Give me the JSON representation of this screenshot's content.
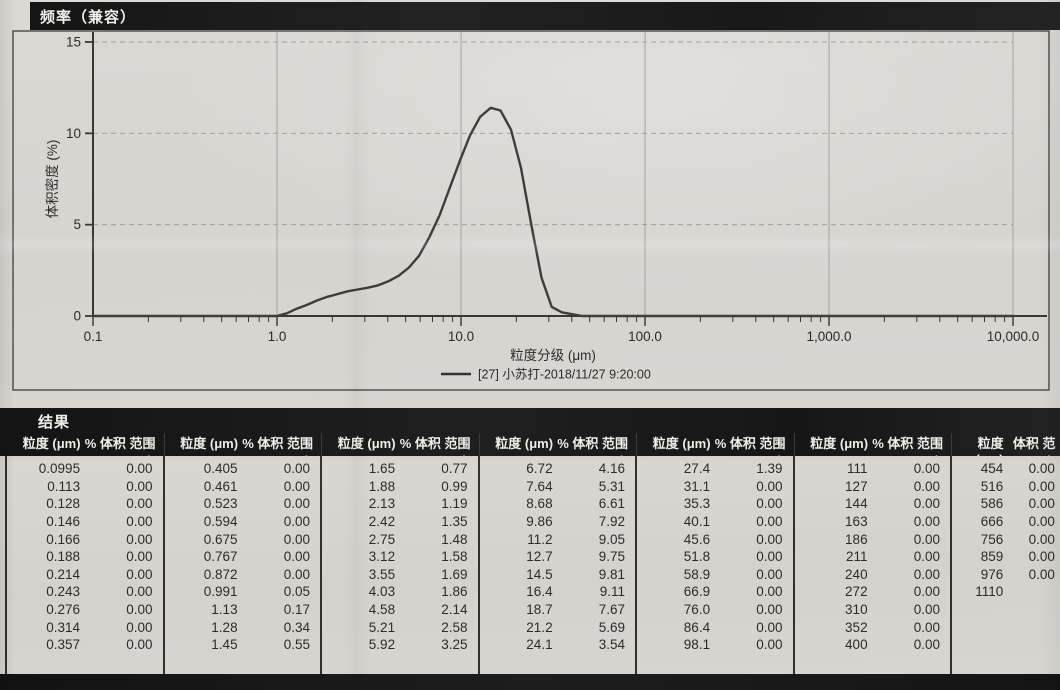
{
  "window": {
    "paper_color": "#d7d4d0",
    "band_color": "#1b1b1b",
    "text_color": "#2d2b28"
  },
  "header": {
    "title": "频率（兼容）"
  },
  "chart_data": {
    "type": "line",
    "title": "频率（兼容）",
    "xlabel": "粒度分级 (μm)",
    "ylabel": "体积密度 (%)",
    "x_scale": "log",
    "xlim": [
      0.1,
      10000
    ],
    "ylim": [
      0,
      15
    ],
    "grid": true,
    "legend_position": "bottom-center",
    "legend_label": "[27] 小苏打-2018/11/27 9:20:00",
    "curve_color": "#3f3d3a",
    "grid_color": "#a3a19d",
    "axis_color": "#39372f",
    "x_ticks": [
      {
        "v": 0.1,
        "label": "0.1"
      },
      {
        "v": 1,
        "label": "1.0"
      },
      {
        "v": 10,
        "label": "10.0"
      },
      {
        "v": 100,
        "label": "100.0"
      },
      {
        "v": 1000,
        "label": "1,000.0"
      },
      {
        "v": 10000,
        "label": "10,000.0"
      }
    ],
    "y_ticks": [
      {
        "v": 0,
        "label": "0"
      },
      {
        "v": 5,
        "label": "5"
      },
      {
        "v": 10,
        "label": "10"
      },
      {
        "v": 15,
        "label": "15"
      }
    ],
    "series": [
      {
        "name": "[27] 小苏打-2018/11/27 9:20:00",
        "x": [
          0.1,
          1.0,
          1.13,
          1.28,
          1.45,
          1.65,
          1.88,
          2.13,
          2.42,
          2.75,
          3.12,
          3.55,
          4.03,
          4.58,
          5.21,
          5.92,
          6.72,
          7.64,
          8.68,
          9.86,
          11.2,
          12.7,
          14.5,
          16.4,
          18.7,
          21.2,
          24.1,
          27.4,
          31.1,
          35.3,
          40.1,
          45.6,
          10000
        ],
        "y": [
          0,
          0,
          0.15,
          0.4,
          0.6,
          0.85,
          1.05,
          1.2,
          1.35,
          1.45,
          1.55,
          1.68,
          1.9,
          2.2,
          2.65,
          3.3,
          4.3,
          5.5,
          7.0,
          8.5,
          9.9,
          10.9,
          11.4,
          11.25,
          10.2,
          8.1,
          5.0,
          2.1,
          0.5,
          0.2,
          0.1,
          0,
          0
        ]
      }
    ]
  },
  "results": {
    "title": "结果",
    "header_size": "粒度 (μm)",
    "header_pct": "% 体积 范围内",
    "header_pct_last": "体积 范围内",
    "groups": [
      [
        [
          "0.0995",
          "0.00"
        ],
        [
          "0.113",
          "0.00"
        ],
        [
          "0.128",
          "0.00"
        ],
        [
          "0.146",
          "0.00"
        ],
        [
          "0.166",
          "0.00"
        ],
        [
          "0.188",
          "0.00"
        ],
        [
          "0.214",
          "0.00"
        ],
        [
          "0.243",
          "0.00"
        ],
        [
          "0.276",
          "0.00"
        ],
        [
          "0.314",
          "0.00"
        ],
        [
          "0.357",
          "0.00"
        ]
      ],
      [
        [
          "0.405",
          "0.00"
        ],
        [
          "0.461",
          "0.00"
        ],
        [
          "0.523",
          "0.00"
        ],
        [
          "0.594",
          "0.00"
        ],
        [
          "0.675",
          "0.00"
        ],
        [
          "0.767",
          "0.00"
        ],
        [
          "0.872",
          "0.00"
        ],
        [
          "0.991",
          "0.05"
        ],
        [
          "1.13",
          "0.17"
        ],
        [
          "1.28",
          "0.34"
        ],
        [
          "1.45",
          "0.55"
        ]
      ],
      [
        [
          "1.65",
          "0.77"
        ],
        [
          "1.88",
          "0.99"
        ],
        [
          "2.13",
          "1.19"
        ],
        [
          "2.42",
          "1.35"
        ],
        [
          "2.75",
          "1.48"
        ],
        [
          "3.12",
          "1.58"
        ],
        [
          "3.55",
          "1.69"
        ],
        [
          "4.03",
          "1.86"
        ],
        [
          "4.58",
          "2.14"
        ],
        [
          "5.21",
          "2.58"
        ],
        [
          "5.92",
          "3.25"
        ]
      ],
      [
        [
          "6.72",
          "4.16"
        ],
        [
          "7.64",
          "5.31"
        ],
        [
          "8.68",
          "6.61"
        ],
        [
          "9.86",
          "7.92"
        ],
        [
          "11.2",
          "9.05"
        ],
        [
          "12.7",
          "9.75"
        ],
        [
          "14.5",
          "9.81"
        ],
        [
          "16.4",
          "9.11"
        ],
        [
          "18.7",
          "7.67"
        ],
        [
          "21.2",
          "5.69"
        ],
        [
          "24.1",
          "3.54"
        ]
      ],
      [
        [
          "27.4",
          "1.39"
        ],
        [
          "31.1",
          "0.00"
        ],
        [
          "35.3",
          "0.00"
        ],
        [
          "40.1",
          "0.00"
        ],
        [
          "45.6",
          "0.00"
        ],
        [
          "51.8",
          "0.00"
        ],
        [
          "58.9",
          "0.00"
        ],
        [
          "66.9",
          "0.00"
        ],
        [
          "76.0",
          "0.00"
        ],
        [
          "86.4",
          "0.00"
        ],
        [
          "98.1",
          "0.00"
        ]
      ],
      [
        [
          "111",
          "0.00"
        ],
        [
          "127",
          "0.00"
        ],
        [
          "144",
          "0.00"
        ],
        [
          "163",
          "0.00"
        ],
        [
          "186",
          "0.00"
        ],
        [
          "211",
          "0.00"
        ],
        [
          "240",
          "0.00"
        ],
        [
          "272",
          "0.00"
        ],
        [
          "310",
          "0.00"
        ],
        [
          "352",
          "0.00"
        ],
        [
          "400",
          "0.00"
        ]
      ],
      [
        [
          "454",
          "0.00"
        ],
        [
          "516",
          "0.00"
        ],
        [
          "586",
          "0.00"
        ],
        [
          "666",
          "0.00"
        ],
        [
          "756",
          "0.00"
        ],
        [
          "859",
          "0.00"
        ],
        [
          "976",
          "0.00"
        ],
        [
          "1110",
          ""
        ]
      ]
    ]
  }
}
